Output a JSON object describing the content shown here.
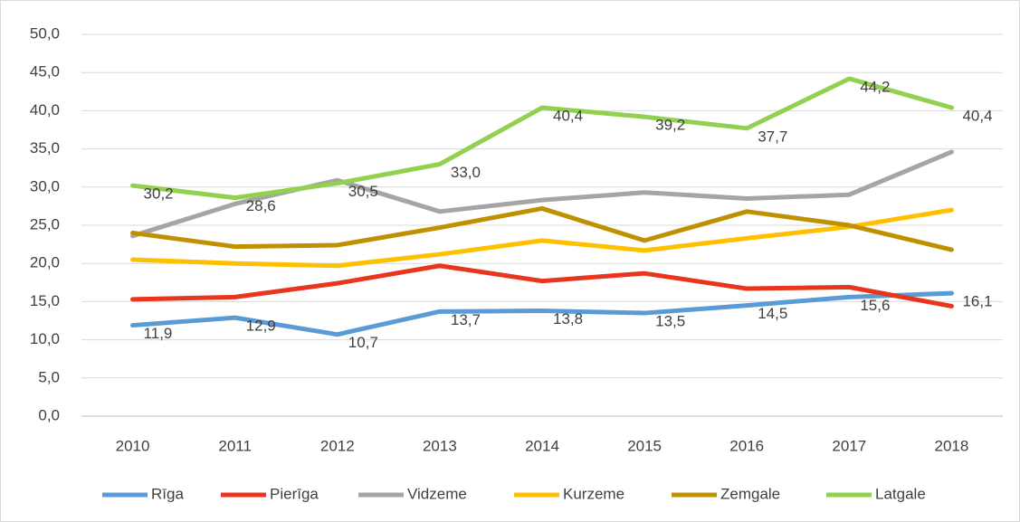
{
  "chart_data": {
    "type": "line",
    "categories": [
      "2010",
      "2011",
      "2012",
      "2013",
      "2014",
      "2015",
      "2016",
      "2017",
      "2018"
    ],
    "ylim": [
      0,
      50
    ],
    "yticks": [
      {
        "value": 0,
        "label": "0,0"
      },
      {
        "value": 5,
        "label": "5,0"
      },
      {
        "value": 10,
        "label": "10,0"
      },
      {
        "value": 15,
        "label": "15,0"
      },
      {
        "value": 20,
        "label": "20,0"
      },
      {
        "value": 25,
        "label": "25,0"
      },
      {
        "value": 30,
        "label": "30,0"
      },
      {
        "value": 35,
        "label": "35,0"
      },
      {
        "value": 40,
        "label": "40,0"
      },
      {
        "value": 45,
        "label": "45,0"
      },
      {
        "value": 50,
        "label": "50,0"
      }
    ],
    "grid": true,
    "legend": "bottom",
    "series": [
      {
        "name": "Rīga",
        "color": "#5b9bd5",
        "values": [
          11.9,
          12.9,
          10.7,
          13.7,
          13.8,
          13.5,
          14.5,
          15.6,
          16.1
        ],
        "value_labels": [
          "11,9",
          "12,9",
          "10,7",
          "13,7",
          "13,8",
          "13,5",
          "14,5",
          "15,6",
          "16,1"
        ]
      },
      {
        "name": "Pierīga",
        "color": "#e8361e",
        "values": [
          15.3,
          15.6,
          17.4,
          19.7,
          17.7,
          18.7,
          16.7,
          16.9,
          14.4
        ]
      },
      {
        "name": "Vidzeme",
        "color": "#a5a5a5",
        "values": [
          23.6,
          27.8,
          30.9,
          26.8,
          28.3,
          29.3,
          28.5,
          29.0,
          34.6
        ]
      },
      {
        "name": "Kurzeme",
        "color": "#ffc000",
        "values": [
          20.5,
          20.0,
          19.7,
          21.2,
          23.0,
          21.7,
          23.3,
          24.8,
          27.0
        ]
      },
      {
        "name": "Zemgale",
        "color": "#bf9000",
        "values": [
          24.0,
          22.2,
          22.4,
          24.7,
          27.2,
          23.0,
          26.8,
          25.0,
          21.8
        ]
      },
      {
        "name": "Latgale",
        "color": "#92d050",
        "values": [
          30.2,
          28.6,
          30.5,
          33.0,
          40.4,
          39.2,
          37.7,
          44.2,
          40.4
        ],
        "value_labels": [
          "30,2",
          "28,6",
          "30,5",
          "33,0",
          "40,4",
          "39,2",
          "37,7",
          "44,2",
          "40,4"
        ]
      }
    ]
  }
}
